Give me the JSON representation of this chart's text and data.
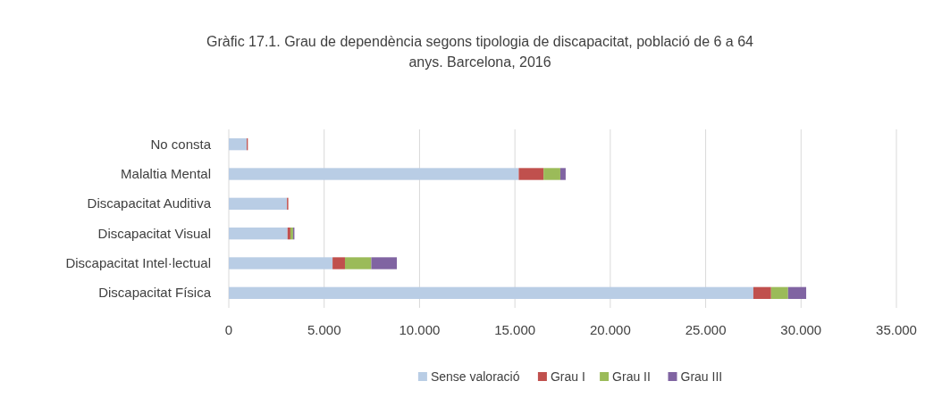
{
  "chart_data": {
    "type": "bar",
    "orientation": "horizontal",
    "stacked": true,
    "title": "Gràfic 17.1. Grau de dependència segons tipologia de discapacitat, població de 6 a 64 anys. Barcelona, 2016",
    "categories": [
      "No consta",
      "Malaltia Mental",
      "Discapacitat Auditiva",
      "Discapacitat Visual",
      "Discapacitat Intel·lectual",
      "Discapacitat Física"
    ],
    "series": [
      {
        "name": "Sense valoració",
        "color": "#b9cde5",
        "values": [
          940,
          15200,
          3050,
          3080,
          5440,
          27500
        ]
      },
      {
        "name": "Grau I",
        "color": "#c0504d",
        "values": [
          60,
          1300,
          70,
          150,
          650,
          930
        ]
      },
      {
        "name": "Grau II",
        "color": "#9bbb59",
        "values": [
          null,
          880,
          null,
          140,
          1380,
          890
        ]
      },
      {
        "name": "Grau III",
        "color": "#8064a2",
        "values": [
          null,
          280,
          null,
          70,
          1340,
          950
        ]
      }
    ],
    "xlim": [
      0,
      35000
    ],
    "xticks": [
      {
        "value": 0,
        "label": "0"
      },
      {
        "value": 5000,
        "label": "5.000"
      },
      {
        "value": 10000,
        "label": "10.000"
      },
      {
        "value": 15000,
        "label": "15.000"
      },
      {
        "value": 20000,
        "label": "20.000"
      },
      {
        "value": 25000,
        "label": "25.000"
      },
      {
        "value": 30000,
        "label": "30.000"
      },
      {
        "value": 35000,
        "label": "35.000"
      }
    ],
    "grid": "x",
    "legend": "bottom"
  }
}
